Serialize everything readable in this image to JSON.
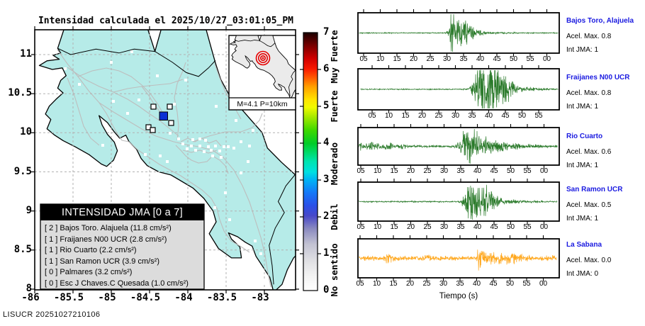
{
  "map": {
    "title": "Intensidad calculada el 2025/10/27_03:01:05_PM",
    "x_tick_labels": [
      "-86",
      "-85.5",
      "-85",
      "-84.5",
      "-84",
      "-83.5",
      "-83"
    ],
    "y_tick_labels": [
      "11",
      "10.5",
      "10",
      "9.5",
      "9",
      "8.5",
      "8"
    ],
    "colors": {
      "land": "#b6ebe8",
      "sea": "#ffffff",
      "roads": "#bdbdbd",
      "grid": "#b2b2b2",
      "coast": "#000000",
      "max_station": "#0a2fd4"
    },
    "inset": {
      "caption": "M=4.1 P=10km",
      "epicenter_color": "#e60000"
    },
    "legend": {
      "title": "INTENSIDAD JMA [0 a 7]",
      "items": [
        "[ 2 ]  Bajos Toro. Alajuela (11.8 cm/s²)",
        "[ 1 ]  Fraijanes N00 UCR (2.8 cm/s²)",
        "[ 1 ]  Rio Cuarto (2.2 cm/s²)",
        "[ 1 ]  San Ramon UCR (3.9 cm/s²)",
        "[ 0 ]  Palmares (3.2 cm/s²)",
        "[ 0 ]  Esc J Chaves.C Quesada (1.0 cm/s²)"
      ]
    },
    "stations": {
      "regular": [
        [
          92,
          97
        ],
        [
          112,
          119
        ],
        [
          157,
          88
        ],
        [
          186,
          73
        ],
        [
          222,
          107
        ],
        [
          262,
          113
        ],
        [
          160,
          143
        ],
        [
          196,
          141
        ],
        [
          246,
          147
        ],
        [
          305,
          150
        ],
        [
          333,
          170
        ],
        [
          357,
          184
        ],
        [
          240,
          188
        ],
        [
          252,
          196
        ],
        [
          258,
          203
        ],
        [
          264,
          210
        ],
        [
          270,
          206
        ],
        [
          276,
          212
        ],
        [
          282,
          206
        ],
        [
          288,
          214
        ],
        [
          294,
          207
        ],
        [
          298,
          212
        ],
        [
          304,
          206
        ],
        [
          310,
          213
        ],
        [
          316,
          207
        ],
        [
          290,
          198
        ],
        [
          282,
          196
        ],
        [
          272,
          197
        ],
        [
          300,
          220
        ],
        [
          312,
          222
        ],
        [
          322,
          207
        ],
        [
          330,
          209
        ],
        [
          340,
          200
        ],
        [
          352,
          206
        ],
        [
          205,
          218
        ],
        [
          226,
          220
        ],
        [
          236,
          228
        ],
        [
          145,
          205
        ],
        [
          350,
          228
        ],
        [
          340,
          244
        ],
        [
          318,
          272
        ],
        [
          303,
          293
        ],
        [
          324,
          310
        ],
        [
          360,
          340
        ],
        [
          368,
          358
        ],
        [
          353,
          383
        ],
        [
          372,
          398
        ],
        [
          180,
          160
        ]
      ],
      "reported": [
        [
          213,
          147
        ],
        [
          236,
          147
        ],
        [
          238,
          170
        ],
        [
          206,
          176
        ],
        [
          212,
          180
        ]
      ],
      "max": [
        225,
        158
      ]
    }
  },
  "colorbar": {
    "tick_labels": [
      "0",
      "1",
      "2",
      "3",
      "4",
      "5",
      "6",
      "7"
    ],
    "category_labels": [
      {
        "text": "No sentido",
        "v": 0.55
      },
      {
        "text": "Debil",
        "v": 2.0
      },
      {
        "text": "Moderado",
        "v": 3.45
      },
      {
        "text": "Fuerte",
        "v": 5.0
      },
      {
        "text": "Muy Fuerte",
        "v": 6.35
      }
    ],
    "stops": [
      [
        0,
        "#ffffff"
      ],
      [
        0.06,
        "#f2f2f2"
      ],
      [
        0.12,
        "#dedee2"
      ],
      [
        0.18,
        "#c2c2d2"
      ],
      [
        0.24,
        "#8a8ac0"
      ],
      [
        0.29,
        "#4848c8"
      ],
      [
        0.33,
        "#2a50e8"
      ],
      [
        0.38,
        "#1478f8"
      ],
      [
        0.43,
        "#00b4f4"
      ],
      [
        0.46,
        "#00e0e0"
      ],
      [
        0.5,
        "#00e4b0"
      ],
      [
        0.54,
        "#00d860"
      ],
      [
        0.57,
        "#00cc28"
      ],
      [
        0.62,
        "#3cd800"
      ],
      [
        0.67,
        "#a0e800"
      ],
      [
        0.71,
        "#f0fa00"
      ],
      [
        0.74,
        "#ffe400"
      ],
      [
        0.79,
        "#ffa000"
      ],
      [
        0.83,
        "#ff5000"
      ],
      [
        0.86,
        "#f81800"
      ],
      [
        0.9,
        "#d00000"
      ],
      [
        0.95,
        "#780000"
      ],
      [
        1,
        "#1a0000"
      ]
    ]
  },
  "seismograms": {
    "xlabel": "Tiempo (s)"
  },
  "footer": "LISUCR 20251027210106",
  "chart_data": [
    {
      "type": "line",
      "station": "Bajos Toro, Alajuela",
      "acel_label": "Acel. Max. 0.8",
      "jma_label": "Int JMA: 1",
      "color": "#2a7a2a",
      "x_tick_labels": [
        "05",
        "10",
        "15",
        "20",
        "25",
        "30",
        "35",
        "40",
        "45",
        "50",
        "55",
        "00"
      ],
      "xlabel": "Tiempo (s)",
      "envelope": {
        "noise": 0.025,
        "main": [
          29.5,
          31.5,
          1.0,
          2.8,
          0.05
        ],
        "bursts": [
          [
            36,
            0.25,
            1.5
          ]
        ],
        "gain": 1.5
      }
    },
    {
      "type": "line",
      "station": "Fraijanes N00 UCR",
      "acel_label": "Acel. Max. 0.8",
      "jma_label": "Int JMA: 1",
      "color": "#2a7a2a",
      "x_tick_labels": [
        "05",
        "10",
        "15",
        "20",
        "25",
        "30",
        "35",
        "40",
        "45",
        "50",
        "55"
      ],
      "xlabel": "Tiempo (s)",
      "envelope": {
        "noise": 0.03,
        "main": [
          33.5,
          36.5,
          1.0,
          3.8,
          0.13
        ],
        "bursts": [
          [
            41,
            0.5,
            2.5
          ],
          [
            45,
            0.28,
            2.0
          ]
        ],
        "gain": 1.5
      }
    },
    {
      "type": "line",
      "station": "Rio Cuarto",
      "acel_label": "Acel. Max. 0.6",
      "jma_label": "Int JMA: 1",
      "color": "#2a7a2a",
      "x_tick_labels": [
        "05",
        "10",
        "15",
        "20",
        "25",
        "30",
        "35",
        "40",
        "45",
        "50",
        "55",
        "00"
      ],
      "xlabel": "Tiempo (s)",
      "envelope": {
        "noise": 0.06,
        "main": [
          32.5,
          37.0,
          1.0,
          4.2,
          0.16
        ],
        "bursts": [
          [
            5,
            0.1,
            1.3
          ],
          [
            9,
            0.13,
            1.6
          ],
          [
            13.5,
            0.1,
            1.0
          ],
          [
            17.5,
            0.09,
            1.0
          ]
        ],
        "gain": 1.6
      }
    },
    {
      "type": "line",
      "station": "San Ramon UCR",
      "acel_label": "Acel. Max. 0.5",
      "jma_label": "Int JMA: 1",
      "color": "#2a7a2a",
      "x_tick_labels": [
        "05",
        "10",
        "15",
        "20",
        "25",
        "30",
        "35",
        "40",
        "45",
        "50",
        "55",
        "00"
      ],
      "xlabel": "Tiempo (s)",
      "envelope": {
        "noise": 0.035,
        "main": [
          34.0,
          37.8,
          1.0,
          3.2,
          0.1
        ],
        "bursts": [
          [
            42,
            0.4,
            2.0
          ]
        ],
        "gain": 1.5
      }
    },
    {
      "type": "line",
      "station": "La Sabana",
      "acel_label": "Acel. Max. 0.0",
      "jma_label": "Int JMA: 0",
      "color": "#ffa71c",
      "x_tick_labels": [
        "05",
        "10",
        "15",
        "20",
        "25",
        "30",
        "35",
        "40",
        "45",
        "50",
        "55",
        "00"
      ],
      "xlabel": "Tiempo (s)",
      "envelope": {
        "noise": 0.14,
        "main": [
          39.6,
          40.3,
          1.0,
          0.9,
          0.1
        ],
        "bursts": [
          [
            13.5,
            0.22,
            0.8
          ],
          [
            25.5,
            0.06,
            1.2
          ],
          [
            46,
            0.13,
            2.5
          ],
          [
            51,
            0.1,
            1.5
          ]
        ],
        "gain": 1.3
      }
    }
  ]
}
